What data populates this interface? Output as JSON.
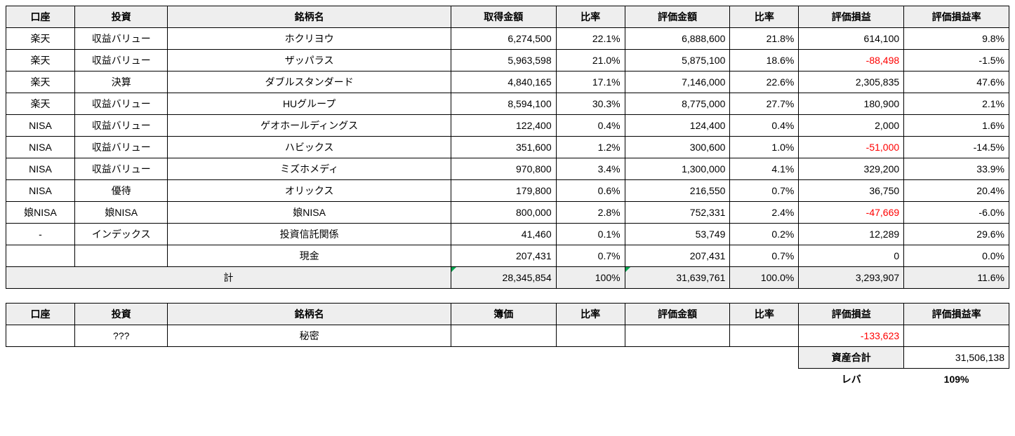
{
  "table1": {
    "headers": [
      "口座",
      "投資",
      "銘柄名",
      "取得金額",
      "比率",
      "評価金額",
      "比率",
      "評価損益",
      "評価損益率"
    ],
    "rows": [
      {
        "account": "楽天",
        "strategy": "収益バリュー",
        "name": "ホクリヨウ",
        "cost": "6,274,500",
        "costRatio": "22.1%",
        "value": "6,888,600",
        "valueRatio": "21.8%",
        "pl": "614,100",
        "plRate": "9.8%",
        "neg": false
      },
      {
        "account": "楽天",
        "strategy": "収益バリュー",
        "name": "ザッパラス",
        "cost": "5,963,598",
        "costRatio": "21.0%",
        "value": "5,875,100",
        "valueRatio": "18.6%",
        "pl": "-88,498",
        "plRate": "-1.5%",
        "neg": true
      },
      {
        "account": "楽天",
        "strategy": "決算",
        "name": "ダブルスタンダード",
        "cost": "4,840,165",
        "costRatio": "17.1%",
        "value": "7,146,000",
        "valueRatio": "22.6%",
        "pl": "2,305,835",
        "plRate": "47.6%",
        "neg": false
      },
      {
        "account": "楽天",
        "strategy": "収益バリュー",
        "name": "HUグループ",
        "cost": "8,594,100",
        "costRatio": "30.3%",
        "value": "8,775,000",
        "valueRatio": "27.7%",
        "pl": "180,900",
        "plRate": "2.1%",
        "neg": false
      },
      {
        "account": "NISA",
        "strategy": "収益バリュー",
        "name": "ゲオホールディングス",
        "cost": "122,400",
        "costRatio": "0.4%",
        "value": "124,400",
        "valueRatio": "0.4%",
        "pl": "2,000",
        "plRate": "1.6%",
        "neg": false
      },
      {
        "account": "NISA",
        "strategy": "収益バリュー",
        "name": "ハビックス",
        "cost": "351,600",
        "costRatio": "1.2%",
        "value": "300,600",
        "valueRatio": "1.0%",
        "pl": "-51,000",
        "plRate": "-14.5%",
        "neg": true
      },
      {
        "account": "NISA",
        "strategy": "収益バリュー",
        "name": "ミズホメディ",
        "cost": "970,800",
        "costRatio": "3.4%",
        "value": "1,300,000",
        "valueRatio": "4.1%",
        "pl": "329,200",
        "plRate": "33.9%",
        "neg": false
      },
      {
        "account": "NISA",
        "strategy": "優待",
        "name": "オリックス",
        "cost": "179,800",
        "costRatio": "0.6%",
        "value": "216,550",
        "valueRatio": "0.7%",
        "pl": "36,750",
        "plRate": "20.4%",
        "neg": false
      },
      {
        "account": "娘NISA",
        "strategy": "娘NISA",
        "name": "娘NISA",
        "cost": "800,000",
        "costRatio": "2.8%",
        "value": "752,331",
        "valueRatio": "2.4%",
        "pl": "-47,669",
        "plRate": "-6.0%",
        "neg": true
      },
      {
        "account": "-",
        "strategy": "インデックス",
        "name": "投資信託関係",
        "cost": "41,460",
        "costRatio": "0.1%",
        "value": "53,749",
        "valueRatio": "0.2%",
        "pl": "12,289",
        "plRate": "29.6%",
        "neg": false
      },
      {
        "account": "",
        "strategy": "",
        "name": "現金",
        "cost": "207,431",
        "costRatio": "0.7%",
        "value": "207,431",
        "valueRatio": "0.7%",
        "pl": "0",
        "plRate": "0.0%",
        "neg": false
      }
    ],
    "total": {
      "label": "計",
      "cost": "28,345,854",
      "costRatio": "100%",
      "value": "31,639,761",
      "valueRatio": "100.0%",
      "pl": "3,293,907",
      "plRate": "11.6%"
    }
  },
  "table2": {
    "headers": [
      "口座",
      "投資",
      "銘柄名",
      "簿価",
      "比率",
      "評価金額",
      "比率",
      "評価損益",
      "評価損益率"
    ],
    "row": {
      "account": "",
      "strategy": "???",
      "name": "秘密",
      "cost": "",
      "costRatio": "",
      "value": "",
      "valueRatio": "",
      "pl": "-133,623",
      "plRate": ""
    }
  },
  "summary": {
    "assetLabel": "資産合計",
    "assetValue": "31,506,138",
    "leverLabel": "レバ",
    "leverValue": "109%"
  }
}
